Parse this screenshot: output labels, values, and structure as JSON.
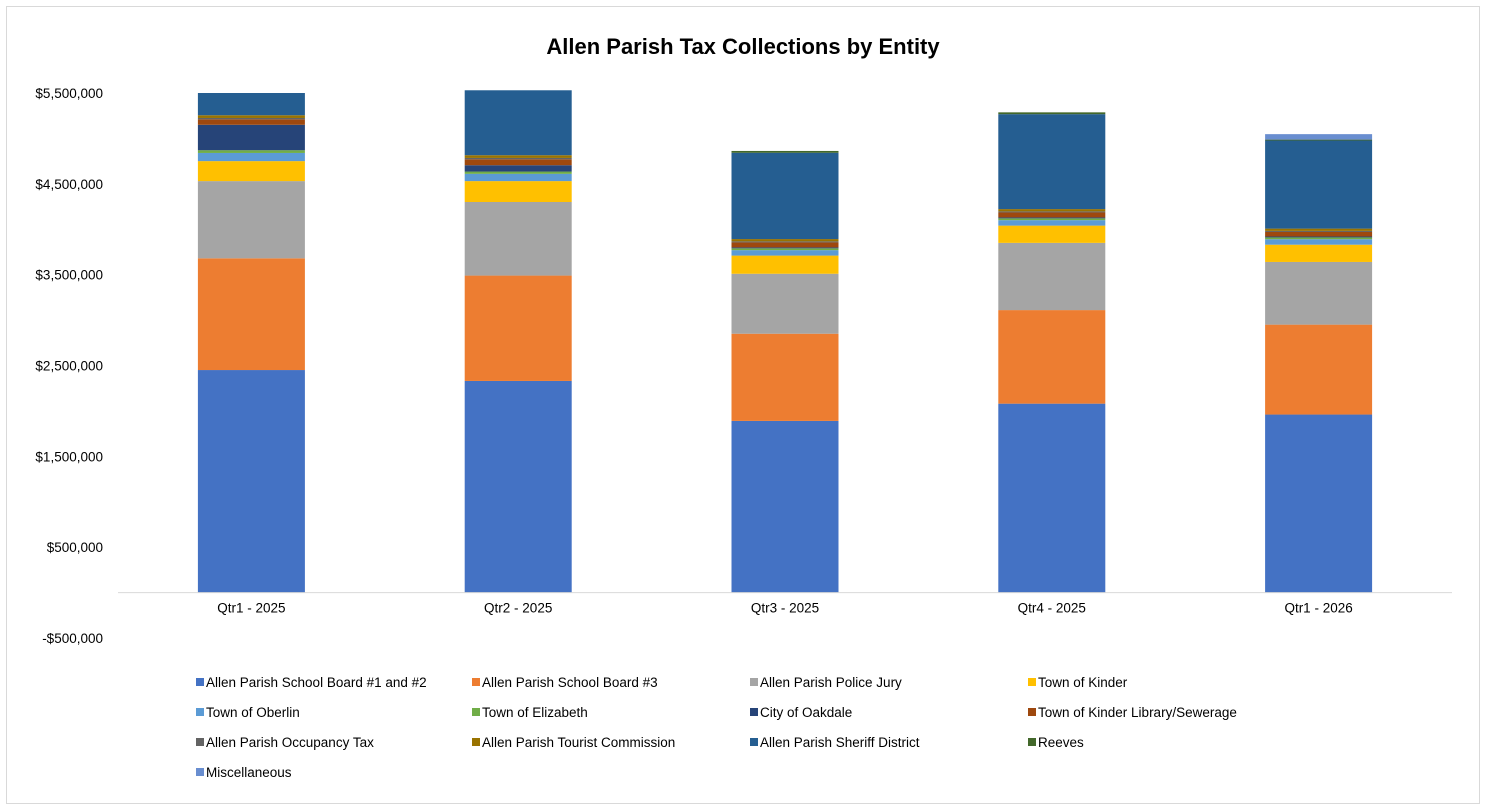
{
  "chart_data": {
    "type": "bar",
    "stacked": true,
    "title": "Allen Parish Tax Collections by Entity",
    "xlabel": "",
    "ylabel": "",
    "ylim": [
      -500000,
      5500000
    ],
    "y_ticks": [
      -500000,
      500000,
      1500000,
      2500000,
      3500000,
      4500000,
      5500000
    ],
    "y_tick_labels": [
      "-$500,000",
      "$500,000",
      "$1,500,000",
      "$2,500,000",
      "$3,500,000",
      "$4,500,000",
      "$5,500,000"
    ],
    "grid": false,
    "legend_position": "bottom",
    "categories": [
      "Qtr1 - 2025",
      "Qtr2 - 2025",
      "Qtr3 - 2025",
      "Qtr4 - 2025",
      "Qtr1 - 2026"
    ],
    "series": [
      {
        "name": "Allen Parish School Board #1 and #2",
        "color": "#4472c4",
        "values": [
          2450000,
          2330000,
          1890000,
          2080000,
          1960000
        ]
      },
      {
        "name": "Allen Parish School Board #3",
        "color": "#ed7d31",
        "values": [
          1230000,
          1160000,
          960000,
          1030000,
          990000
        ]
      },
      {
        "name": "Allen Parish Police Jury",
        "color": "#a5a5a5",
        "values": [
          850000,
          810000,
          660000,
          740000,
          690000
        ]
      },
      {
        "name": "Town of Kinder",
        "color": "#ffc000",
        "values": [
          220000,
          230000,
          200000,
          190000,
          190000
        ]
      },
      {
        "name": "Town of Oberlin",
        "color": "#5b9bd5",
        "values": [
          90000,
          80000,
          60000,
          60000,
          60000
        ]
      },
      {
        "name": "Town of Elizabeth",
        "color": "#70ad47",
        "values": [
          30000,
          25000,
          20000,
          20000,
          20000
        ]
      },
      {
        "name": "City of Oakdale",
        "color": "#264478",
        "values": [
          280000,
          70000,
          10000,
          10000,
          10000
        ]
      },
      {
        "name": "Town of Kinder Library/Sewerage",
        "color": "#9e480e",
        "values": [
          60000,
          65000,
          55000,
          55000,
          50000
        ]
      },
      {
        "name": "Allen Parish Occupancy Tax",
        "color": "#636363",
        "values": [
          15000,
          15000,
          12000,
          12000,
          12000
        ]
      },
      {
        "name": "Allen Parish Tourist Commission",
        "color": "#997300",
        "values": [
          30000,
          30000,
          25000,
          25000,
          25000
        ]
      },
      {
        "name": "Allen Parish Sheriff District",
        "color": "#255e91",
        "values": [
          245000,
          715000,
          950000,
          1045000,
          970000
        ]
      },
      {
        "name": "Reeves",
        "color": "#43682b",
        "values": [
          0,
          0,
          20000,
          20000,
          10000
        ]
      },
      {
        "name": "Miscellaneous",
        "color": "#698ed0",
        "values": [
          0,
          0,
          0,
          0,
          60000
        ]
      }
    ]
  }
}
